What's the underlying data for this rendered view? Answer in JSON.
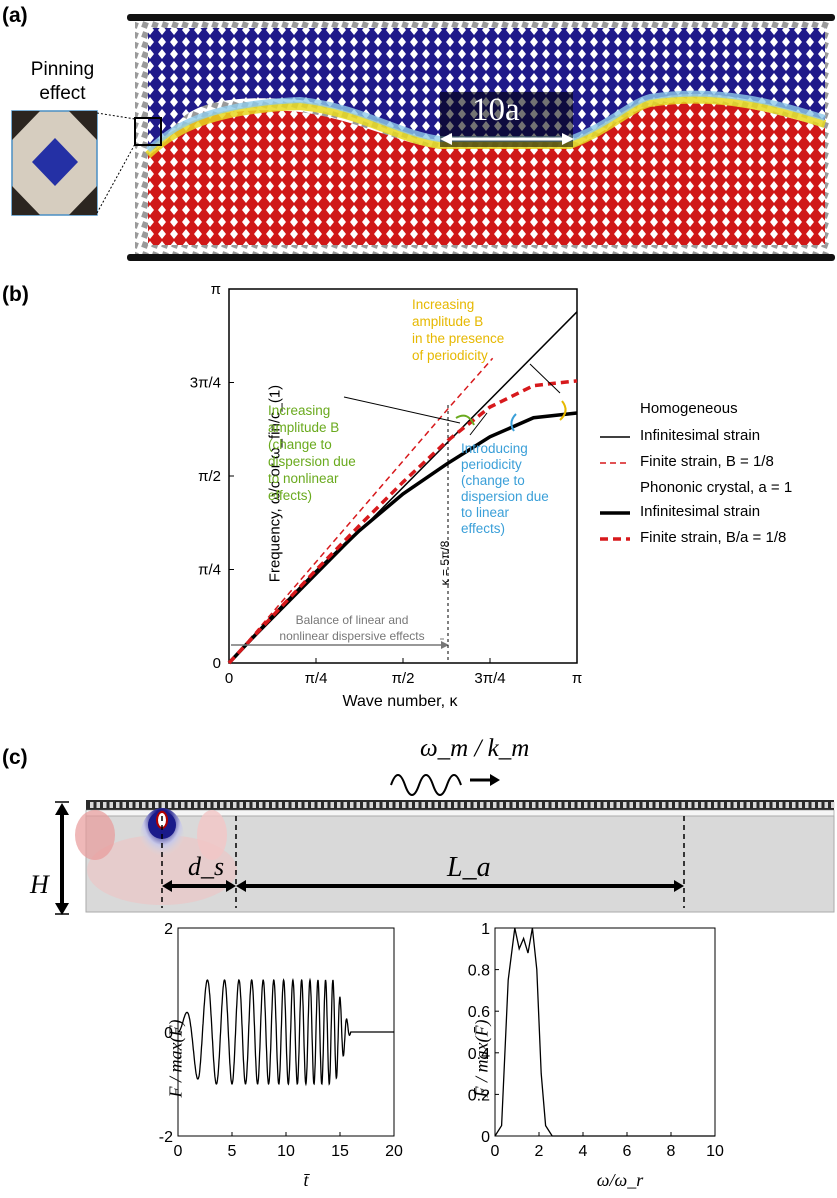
{
  "panel_a": {
    "label": "(a)",
    "inset_title_line1": "Pinning",
    "inset_title_line2": "effect",
    "scale_label": "10a"
  },
  "panel_b": {
    "label": "(b)",
    "ylabel": "Frequency, ω/c or ω_fin/c_(1)",
    "xlabel": "Wave number, κ",
    "xticks": [
      "0",
      "π/4",
      "π/2",
      "3π/4",
      "π"
    ],
    "yticks": [
      "0",
      "π/4",
      "π/2",
      "3π/4",
      "π"
    ],
    "annotation_yellow": [
      "Increasing",
      "amplitude B",
      "in the presence",
      "of periodicity"
    ],
    "annotation_green": [
      "Increasing",
      "amplitude B",
      "(change to",
      "dispersion due",
      "to nonlinear",
      "effects)"
    ],
    "annotation_blue": [
      "Introducing",
      "periodicity",
      "(change to",
      "dispersion due",
      "to linear",
      "effects)"
    ],
    "annotation_balance": [
      "Balance of linear and",
      "nonlinear dispersive effects"
    ],
    "kappa_marker": "κ = 5π/8",
    "legend_homogeneous": "Homogeneous",
    "legend_h_inf": "Infinitesimal strain",
    "legend_h_fin": "Finite strain, B = 1/8",
    "legend_phononic": "Phononic crystal, a = 1",
    "legend_p_inf": "Infinitesimal strain",
    "legend_p_fin": "Finite strain, B/a = 1/8",
    "colors": {
      "red": "#d7191c",
      "green": "#6aaa1e",
      "yellow": "#e6b800",
      "blue": "#3a9fd8",
      "gray": "#777777"
    }
  },
  "panel_c": {
    "label": "(c)",
    "wave_label": "ω_m / k_m",
    "H_label": "H",
    "ds_label": "d_s",
    "La_label": "L_a"
  },
  "chart_data": [
    {
      "type": "line",
      "title": "",
      "xlabel": "Wave number, κ",
      "ylabel": "Frequency, ω/c or ω_fin/c_(1)",
      "xlim": [
        0,
        3.1416
      ],
      "ylim": [
        0,
        3.1416
      ],
      "series": [
        {
          "name": "Homogeneous, Infinitesimal strain",
          "x": [
            0,
            3.1416
          ],
          "y": [
            0,
            2.95
          ]
        },
        {
          "name": "Homogeneous, Finite strain, B = 1/8",
          "x": [
            0,
            0.5,
            1.0,
            1.5,
            2.0,
            2.38
          ],
          "y": [
            0,
            0.54,
            1.08,
            1.62,
            2.16,
            2.56
          ]
        },
        {
          "name": "Phononic crystal a = 1, Infinitesimal strain",
          "x": [
            0,
            0.393,
            0.785,
            1.178,
            1.571,
            1.963,
            2.356,
            2.749,
            3.1416
          ],
          "y": [
            0,
            0.391,
            0.765,
            1.113,
            1.42,
            1.67,
            1.9,
            2.06,
            2.1
          ]
        },
        {
          "name": "Phononic crystal a = 1, Finite strain, B/a = 1/8",
          "x": [
            0,
            0.393,
            0.785,
            1.178,
            1.571,
            1.963,
            2.356,
            2.749,
            3.1416
          ],
          "y": [
            0,
            0.394,
            0.78,
            1.155,
            1.52,
            1.86,
            2.15,
            2.33,
            2.37
          ]
        }
      ],
      "markers": [
        {
          "type": "vline",
          "x": 1.9635,
          "label": "κ = 5π/8"
        }
      ]
    },
    {
      "type": "line",
      "title": "",
      "xlabel": "t̄",
      "ylabel": "F / max(F)",
      "xlim": [
        0,
        20
      ],
      "ylim": [
        -2,
        2
      ],
      "xticks": [
        "0",
        "5",
        "10",
        "15",
        "20"
      ],
      "yticks": [
        "-2",
        "0",
        "2"
      ],
      "series": [
        {
          "name": "",
          "description_values": {
            "chirp_start": 0,
            "chirp_end": 16,
            "amplitude": 1
          }
        }
      ]
    },
    {
      "type": "line",
      "title": "",
      "xlabel": "ω/ω_r",
      "ylabel": "F̄ / max(F̄)",
      "xlim": [
        0,
        10
      ],
      "ylim": [
        0,
        1
      ],
      "xticks": [
        "0",
        "2",
        "4",
        "6",
        "8",
        "10"
      ],
      "yticks": [
        "0",
        "0.2",
        "0.4",
        "0.6",
        "0.8",
        "1"
      ],
      "series": [
        {
          "name": "",
          "x": [
            0,
            0.3,
            0.6,
            0.9,
            1.1,
            1.3,
            1.5,
            1.7,
            1.9,
            2.1,
            2.3,
            2.6,
            3.0
          ],
          "y": [
            0.0,
            0.05,
            0.75,
            1.0,
            0.9,
            0.95,
            0.88,
            1.0,
            0.8,
            0.3,
            0.05,
            0.0,
            0.0
          ]
        }
      ]
    }
  ]
}
